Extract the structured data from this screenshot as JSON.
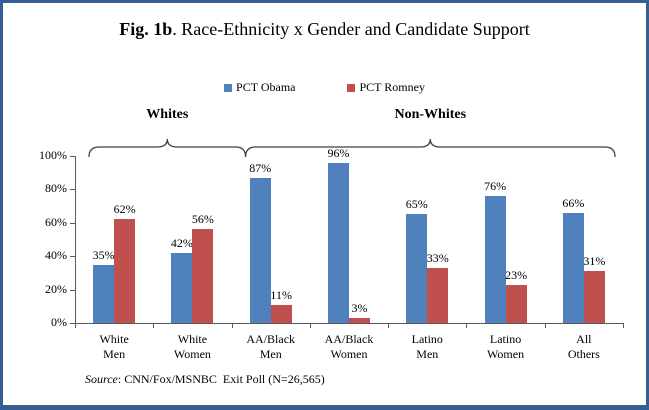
{
  "title": {
    "prefix": "Fig. 1b",
    "rest": ". Race-Ethnicity x Gender and Candidate Support"
  },
  "legend": [
    {
      "label": "PCT Obama",
      "color": "#4F81BD"
    },
    {
      "label": "PCT Romney",
      "color": "#C0504D"
    }
  ],
  "source": {
    "prefix": "Source",
    "rest": ": CNN/Fox/MSNBC  Exit Poll (N=26,565)"
  },
  "colors": {
    "obama_blue": "#4F81BD",
    "romney_red": "#C0504D",
    "frame_border": "#365F91",
    "axis": "#595959",
    "bracket": "#404040"
  },
  "chart_data": {
    "type": "bar",
    "title": "Fig. 1b. Race-Ethnicity x Gender and Candidate Support",
    "categories": [
      "White Men",
      "White Women",
      "AA/Black Men",
      "AA/Black Women",
      "Latino Men",
      "Latino Women",
      "All Others"
    ],
    "category_lines": [
      [
        "White",
        "Men"
      ],
      [
        "White",
        "Women"
      ],
      [
        "AA/Black",
        "Men"
      ],
      [
        "AA/Black",
        "Women"
      ],
      [
        "Latino",
        "Men"
      ],
      [
        "Latino",
        "Women"
      ],
      [
        "All",
        "Others"
      ]
    ],
    "series": [
      {
        "name": "PCT Obama",
        "color": "#4F81BD",
        "values": [
          35,
          42,
          87,
          96,
          65,
          76,
          66
        ]
      },
      {
        "name": "PCT Romney",
        "color": "#C0504D",
        "values": [
          62,
          56,
          11,
          3,
          33,
          23,
          31
        ]
      }
    ],
    "data_label_format": "{v}%",
    "groups": [
      {
        "label": "Whites",
        "from": 0,
        "to": 1
      },
      {
        "label": "Non-Whites",
        "from": 2,
        "to": 6
      }
    ],
    "xlabel": "",
    "ylabel": "",
    "ylim": [
      0,
      100
    ],
    "yticks": [
      "0%",
      "20%",
      "40%",
      "60%",
      "80%",
      "100%"
    ],
    "grid": false,
    "legend_position": "top"
  }
}
